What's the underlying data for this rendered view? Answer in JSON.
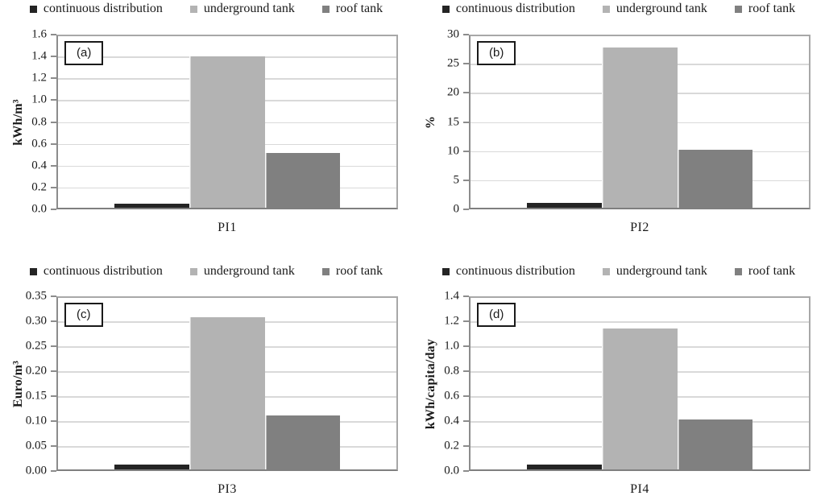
{
  "figure": {
    "description": "Four-panel bar chart comparing performance indicators PI1-PI4 for three water supply scenarios",
    "series_colors": {
      "continuous distribution": "#242424",
      "underground tank": "#b3b3b3",
      "roof tank": "#808080"
    },
    "grid_color": "#d9d9d9",
    "axis_color": "#8c8c8c",
    "text_color": "#1a1a1a"
  },
  "chart_data": [
    {
      "type": "bar",
      "panel_label": "(a)",
      "categories": [
        "PI1"
      ],
      "series": [
        {
          "name": "continuous distribution",
          "values": [
            0.04
          ],
          "color": "#242424"
        },
        {
          "name": "underground tank",
          "values": [
            1.41
          ],
          "color": "#b3b3b3"
        },
        {
          "name": "roof tank",
          "values": [
            0.51
          ],
          "color": "#808080"
        }
      ],
      "title": "",
      "xlabel": "PI1",
      "ylabel": "kWh/m³",
      "ylim": [
        0,
        1.6
      ],
      "yticks": [
        "0.0",
        "0.2",
        "0.4",
        "0.6",
        "0.8",
        "1.0",
        "1.2",
        "1.4",
        "1.6"
      ],
      "grid": true,
      "legend_position": "top"
    },
    {
      "type": "bar",
      "panel_label": "(b)",
      "categories": [
        "PI2"
      ],
      "series": [
        {
          "name": "continuous distribution",
          "values": [
            0.8
          ],
          "color": "#242424"
        },
        {
          "name": "underground tank",
          "values": [
            28.1
          ],
          "color": "#b3b3b3"
        },
        {
          "name": "roof tank",
          "values": [
            10.1
          ],
          "color": "#808080"
        }
      ],
      "title": "",
      "xlabel": "PI2",
      "ylabel": "%",
      "ylim": [
        0,
        30
      ],
      "yticks": [
        "0",
        "5",
        "10",
        "15",
        "20",
        "25",
        "30"
      ],
      "grid": true,
      "legend_position": "top"
    },
    {
      "type": "bar",
      "panel_label": "(c)",
      "categories": [
        "PI3"
      ],
      "series": [
        {
          "name": "continuous distribution",
          "values": [
            0.01
          ],
          "color": "#242424"
        },
        {
          "name": "underground tank",
          "values": [
            0.31
          ],
          "color": "#b3b3b3"
        },
        {
          "name": "roof tank",
          "values": [
            0.11
          ],
          "color": "#808080"
        }
      ],
      "title": "",
      "xlabel": "PI3",
      "ylabel": "Euro/m³",
      "ylim": [
        0,
        0.35
      ],
      "yticks": [
        "0.00",
        "0.05",
        "0.10",
        "0.15",
        "0.20",
        "0.25",
        "0.30",
        "0.35"
      ],
      "grid": true,
      "legend_position": "top"
    },
    {
      "type": "bar",
      "panel_label": "(d)",
      "categories": [
        "PI4"
      ],
      "series": [
        {
          "name": "continuous distribution",
          "values": [
            0.04
          ],
          "color": "#242424"
        },
        {
          "name": "underground tank",
          "values": [
            1.15
          ],
          "color": "#b3b3b3"
        },
        {
          "name": "roof tank",
          "values": [
            0.41
          ],
          "color": "#808080"
        }
      ],
      "title": "",
      "xlabel": "PI4",
      "ylabel": "kWh/capita/day",
      "ylim": [
        0,
        1.4
      ],
      "yticks": [
        "0.0",
        "0.2",
        "0.4",
        "0.6",
        "0.8",
        "1.0",
        "1.2",
        "1.4"
      ],
      "grid": true,
      "legend_position": "top"
    }
  ]
}
